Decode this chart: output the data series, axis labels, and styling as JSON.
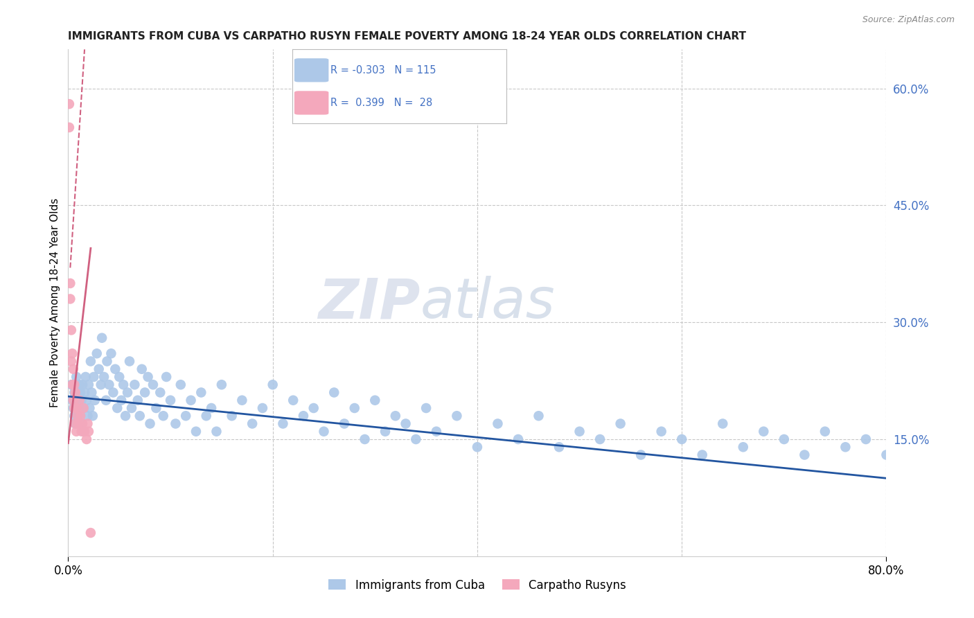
{
  "title": "IMMIGRANTS FROM CUBA VS CARPATHO RUSYN FEMALE POVERTY AMONG 18-24 YEAR OLDS CORRELATION CHART",
  "source": "Source: ZipAtlas.com",
  "ylabel": "Female Poverty Among 18-24 Year Olds",
  "xlim": [
    0.0,
    0.8
  ],
  "ylim": [
    0.0,
    0.65
  ],
  "watermark": "ZIPatlas",
  "scatter_blue_color": "#adc8e8",
  "scatter_pink_color": "#f4a8bc",
  "line_blue_color": "#2255a0",
  "line_pink_color": "#d06080",
  "grid_color": "#c8c8c8",
  "title_color": "#222222",
  "right_tick_color": "#4472c4",
  "blue_trend": {
    "x_start": 0.0,
    "y_start": 0.205,
    "x_end": 0.8,
    "y_end": 0.1
  },
  "pink_trend_visible": {
    "x_start": 0.0,
    "y_start": 0.145,
    "x_end": 0.022,
    "y_end": 0.395
  },
  "pink_trend_dash": {
    "x_start": 0.002,
    "y_start": 0.37,
    "x_end": 0.016,
    "y_end": 0.65
  },
  "blue_scatter_x": [
    0.003,
    0.004,
    0.005,
    0.006,
    0.006,
    0.007,
    0.007,
    0.008,
    0.009,
    0.01,
    0.01,
    0.011,
    0.011,
    0.012,
    0.013,
    0.013,
    0.014,
    0.015,
    0.015,
    0.016,
    0.017,
    0.018,
    0.019,
    0.02,
    0.021,
    0.022,
    0.023,
    0.024,
    0.025,
    0.026,
    0.028,
    0.03,
    0.032,
    0.033,
    0.035,
    0.037,
    0.038,
    0.04,
    0.042,
    0.044,
    0.046,
    0.048,
    0.05,
    0.052,
    0.054,
    0.056,
    0.058,
    0.06,
    0.062,
    0.065,
    0.068,
    0.07,
    0.072,
    0.075,
    0.078,
    0.08,
    0.083,
    0.086,
    0.09,
    0.093,
    0.096,
    0.1,
    0.105,
    0.11,
    0.115,
    0.12,
    0.125,
    0.13,
    0.135,
    0.14,
    0.145,
    0.15,
    0.16,
    0.17,
    0.18,
    0.19,
    0.2,
    0.21,
    0.22,
    0.23,
    0.24,
    0.25,
    0.26,
    0.27,
    0.28,
    0.29,
    0.3,
    0.31,
    0.32,
    0.33,
    0.34,
    0.35,
    0.36,
    0.38,
    0.4,
    0.42,
    0.44,
    0.46,
    0.48,
    0.5,
    0.52,
    0.54,
    0.56,
    0.58,
    0.6,
    0.62,
    0.64,
    0.66,
    0.68,
    0.7,
    0.72,
    0.74,
    0.76,
    0.78,
    0.8
  ],
  "blue_scatter_y": [
    0.22,
    0.2,
    0.19,
    0.18,
    0.21,
    0.2,
    0.17,
    0.23,
    0.19,
    0.2,
    0.18,
    0.22,
    0.19,
    0.21,
    0.17,
    0.2,
    0.22,
    0.19,
    0.16,
    0.21,
    0.23,
    0.2,
    0.18,
    0.22,
    0.19,
    0.25,
    0.21,
    0.18,
    0.23,
    0.2,
    0.26,
    0.24,
    0.22,
    0.28,
    0.23,
    0.2,
    0.25,
    0.22,
    0.26,
    0.21,
    0.24,
    0.19,
    0.23,
    0.2,
    0.22,
    0.18,
    0.21,
    0.25,
    0.19,
    0.22,
    0.2,
    0.18,
    0.24,
    0.21,
    0.23,
    0.17,
    0.22,
    0.19,
    0.21,
    0.18,
    0.23,
    0.2,
    0.17,
    0.22,
    0.18,
    0.2,
    0.16,
    0.21,
    0.18,
    0.19,
    0.16,
    0.22,
    0.18,
    0.2,
    0.17,
    0.19,
    0.22,
    0.17,
    0.2,
    0.18,
    0.19,
    0.16,
    0.21,
    0.17,
    0.19,
    0.15,
    0.2,
    0.16,
    0.18,
    0.17,
    0.15,
    0.19,
    0.16,
    0.18,
    0.14,
    0.17,
    0.15,
    0.18,
    0.14,
    0.16,
    0.15,
    0.17,
    0.13,
    0.16,
    0.15,
    0.13,
    0.17,
    0.14,
    0.16,
    0.15,
    0.13,
    0.16,
    0.14,
    0.15,
    0.13
  ],
  "pink_scatter_x": [
    0.001,
    0.001,
    0.002,
    0.002,
    0.003,
    0.003,
    0.004,
    0.004,
    0.005,
    0.005,
    0.006,
    0.006,
    0.007,
    0.007,
    0.008,
    0.008,
    0.009,
    0.01,
    0.011,
    0.012,
    0.013,
    0.014,
    0.015,
    0.016,
    0.018,
    0.019,
    0.02,
    0.022
  ],
  "pink_scatter_y": [
    0.58,
    0.55,
    0.35,
    0.33,
    0.29,
    0.25,
    0.26,
    0.22,
    0.24,
    0.2,
    0.22,
    0.19,
    0.21,
    0.17,
    0.19,
    0.16,
    0.18,
    0.17,
    0.2,
    0.18,
    0.16,
    0.17,
    0.19,
    0.16,
    0.15,
    0.17,
    0.16,
    0.03
  ]
}
